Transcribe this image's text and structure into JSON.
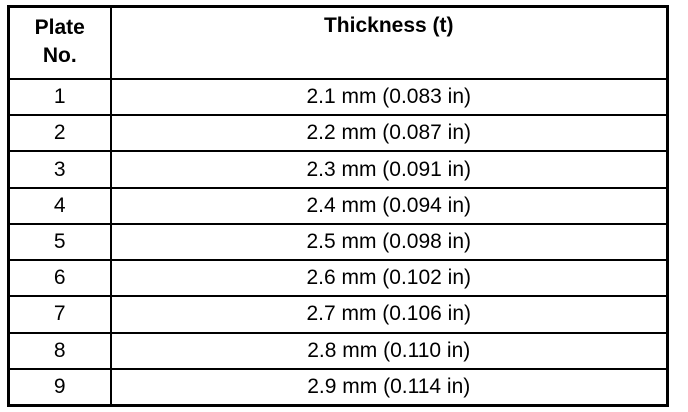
{
  "table": {
    "header": [
      "Plate No.",
      "Thickness (t)"
    ],
    "rows": [
      [
        "1",
        "2.1 mm (0.083 in)"
      ],
      [
        "2",
        "2.2 mm (0.087 in)"
      ],
      [
        "3",
        "2.3 mm (0.091 in)"
      ],
      [
        "4",
        "2.4 mm (0.094 in)"
      ],
      [
        "5",
        "2.5 mm (0.098 in)"
      ],
      [
        "6",
        "2.6 mm (0.102 in)"
      ],
      [
        "7",
        "2.7 mm (0.106 in)"
      ],
      [
        "8",
        "2.8 mm (0.110 in)"
      ],
      [
        "9",
        "2.9 mm (0.114 in)"
      ]
    ]
  }
}
